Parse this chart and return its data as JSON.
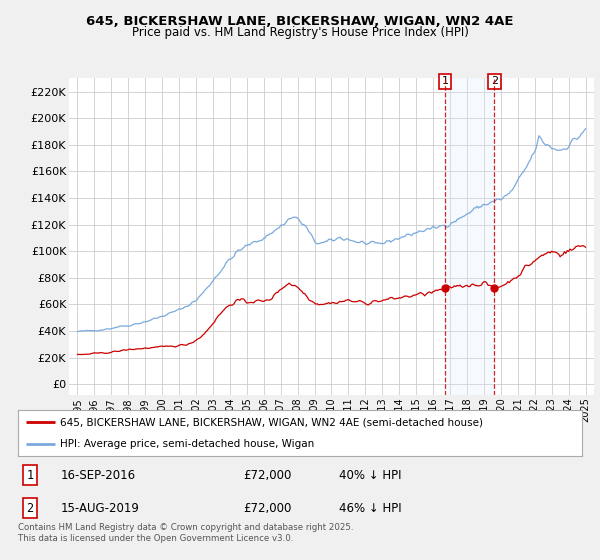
{
  "title1": "645, BICKERSHAW LANE, BICKERSHAW, WIGAN, WN2 4AE",
  "title2": "Price paid vs. HM Land Registry's House Price Index (HPI)",
  "background_color": "#f0f0f0",
  "plot_bg_color": "#ffffff",
  "grid_color": "#cccccc",
  "red_color": "#cc0000",
  "blue_color": "#7aaadd",
  "shade_color": "#ddeeff",
  "ylabel_ticks": [
    0,
    20000,
    40000,
    60000,
    80000,
    100000,
    120000,
    140000,
    160000,
    180000,
    200000,
    220000
  ],
  "ylabel_labels": [
    "£0",
    "£20K",
    "£40K",
    "£60K",
    "£80K",
    "£100K",
    "£120K",
    "£140K",
    "£160K",
    "£180K",
    "£200K",
    "£220K"
  ],
  "xtick_years": [
    1995,
    1996,
    1997,
    1998,
    1999,
    2000,
    2001,
    2002,
    2003,
    2004,
    2005,
    2006,
    2007,
    2008,
    2009,
    2010,
    2011,
    2012,
    2013,
    2014,
    2015,
    2016,
    2017,
    2018,
    2019,
    2020,
    2021,
    2022,
    2023,
    2024,
    2025
  ],
  "sale1_date": 2016.71,
  "sale1_price": 72000,
  "sale1_label": "1",
  "sale2_date": 2019.62,
  "sale2_price": 72000,
  "sale2_label": "2",
  "legend_red": "645, BICKERSHAW LANE, BICKERSHAW, WIGAN, WN2 4AE (semi-detached house)",
  "legend_blue": "HPI: Average price, semi-detached house, Wigan",
  "table_row1": [
    "1",
    "16-SEP-2016",
    "£72,000",
    "40% ↓ HPI"
  ],
  "table_row2": [
    "2",
    "15-AUG-2019",
    "£72,000",
    "46% ↓ HPI"
  ],
  "footer": "Contains HM Land Registry data © Crown copyright and database right 2025.\nThis data is licensed under the Open Government Licence v3.0."
}
